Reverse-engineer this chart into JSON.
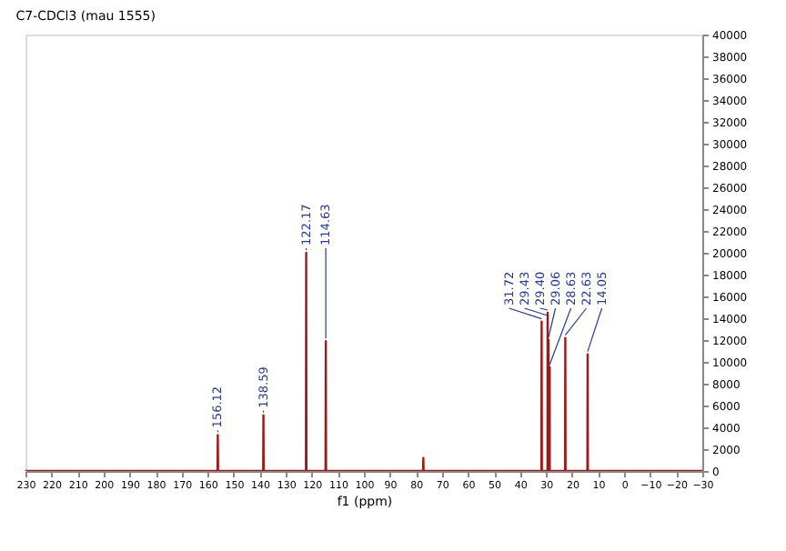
{
  "chart_data": {
    "type": "line",
    "title": "C7-CDCl3 (mau 1555)",
    "xlabel": "f1 (ppm)",
    "series": [
      {
        "color": "#9b1b1b",
        "x": [
          230,
          156.22,
          156.12,
          156.02,
          138.69,
          138.59,
          138.49,
          122.27,
          122.17,
          122.07,
          114.73,
          114.63,
          114.53,
          77.26,
          77.16,
          77.06,
          31.82,
          31.72,
          31.62,
          29.46,
          29.43,
          29.415,
          29.4,
          29.37,
          29.09,
          29.06,
          29.03,
          28.66,
          28.63,
          28.6,
          22.73,
          22.63,
          22.53,
          14.15,
          14.05,
          13.95,
          -30
        ],
        "values": [
          0,
          0,
          3300,
          0,
          0,
          5100,
          0,
          0,
          20000,
          0,
          0,
          11900,
          0,
          0,
          1200,
          0,
          0,
          13700,
          0,
          0,
          14000,
          0,
          14500,
          0,
          0,
          12000,
          0,
          0,
          9500,
          0,
          0,
          12200,
          0,
          0,
          10700,
          0,
          0
        ]
      }
    ],
    "annotations": [
      {
        "text": "156.12",
        "x": 156.12,
        "y": 3300
      },
      {
        "text": "138.59",
        "x": 138.59,
        "y": 5100
      },
      {
        "text": "122.17",
        "x": 122.17,
        "y": 20000
      },
      {
        "text": "114.63",
        "x": 114.63,
        "y": 11900
      },
      {
        "text": "31.72",
        "x": 31.72,
        "y": 13700
      },
      {
        "text": "29.43",
        "x": 29.43,
        "y": 14000
      },
      {
        "text": "29.40",
        "x": 29.4,
        "y": 14500
      },
      {
        "text": "29.06",
        "x": 29.06,
        "y": 12000
      },
      {
        "text": "28.63",
        "x": 28.63,
        "y": 9500
      },
      {
        "text": "22.63",
        "x": 22.63,
        "y": 12200
      },
      {
        "text": "14.05",
        "x": 14.05,
        "y": 10700
      }
    ],
    "xlim": [
      230,
      -30
    ],
    "xticks": [
      230,
      220,
      210,
      200,
      190,
      180,
      170,
      160,
      150,
      140,
      130,
      120,
      110,
      100,
      90,
      80,
      70,
      60,
      50,
      40,
      30,
      20,
      10,
      0,
      -10,
      -20,
      -30
    ],
    "ylim": [
      0,
      40000
    ],
    "yticks": [
      0,
      2000,
      4000,
      6000,
      8000,
      10000,
      12000,
      14000,
      16000,
      18000,
      20000,
      22000,
      24000,
      26000,
      28000,
      30000,
      32000,
      34000,
      36000,
      38000,
      40000
    ],
    "grid": false,
    "marker": "none",
    "line_style": "solid"
  }
}
